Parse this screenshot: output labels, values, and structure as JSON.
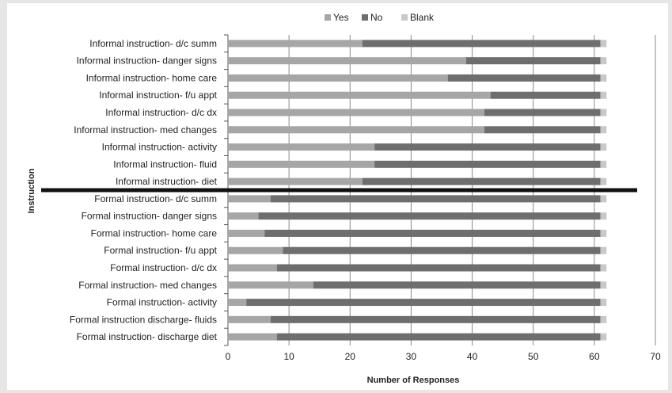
{
  "chart_data": {
    "type": "bar",
    "orientation": "horizontal",
    "stacked": true,
    "categories": [
      "Informal instruction- d/c summ",
      "Informal instruction- danger signs",
      "Informal instruction- home care",
      "Informal instruction- f/u appt",
      "Informal instruction- d/c dx",
      "Informal instruction- med changes",
      "Informal instruction- activity",
      "Informal instruction- fluid",
      "Informal instruction- diet",
      "Formal instruction- d/c summ",
      "Formal instruction- danger signs",
      "Formal instruction- home care",
      "Formal instruction- f/u appt",
      "Formal instruction- d/c dx",
      "Formal instruction- med changes",
      "Formal instruction- activity",
      "Formal instruction discharge- fluids",
      "Formal instruction- discharge diet"
    ],
    "series": [
      {
        "name": "Yes",
        "color": "#a6a6a6",
        "values": [
          22,
          39,
          36,
          43,
          42,
          42,
          24,
          24,
          22,
          7,
          5,
          6,
          9,
          8,
          14,
          3,
          7,
          8
        ]
      },
      {
        "name": "No",
        "color": "#6e6e6e",
        "values": [
          39,
          22,
          25,
          18,
          19,
          19,
          37,
          37,
          39,
          54,
          56,
          55,
          52,
          53,
          47,
          58,
          54,
          53
        ]
      },
      {
        "name": "Blank",
        "color": "#c8c8c8",
        "values": [
          1,
          1,
          1,
          1,
          1,
          1,
          1,
          1,
          1,
          1,
          1,
          1,
          1,
          1,
          1,
          1,
          1,
          1
        ]
      }
    ],
    "xlim": [
      0,
      70
    ],
    "xticks": [
      "0",
      "10",
      "20",
      "30",
      "40",
      "50",
      "60",
      "70"
    ],
    "xlabel": "Number of Responses",
    "ylabel": "Instruction",
    "grid": "vertical",
    "legend": "top-center",
    "separator_after_category_index": 8,
    "separator_color": "#111111"
  }
}
